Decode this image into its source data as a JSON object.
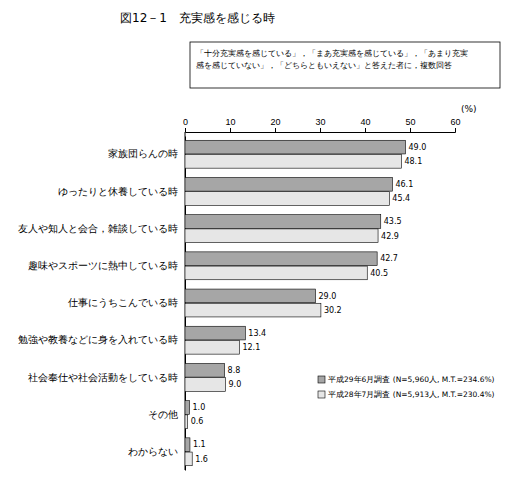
{
  "chart_data": {
    "type": "bar",
    "orientation": "horizontal",
    "title": "図12－1　充実感を感じる時",
    "subtitle": "「十分充実感を感じている」，「まあ充実感を感じている」，「あまり充実感を感じていない」，「どちらともいえない」と答えた者に，複数回答",
    "xlabel": "(%)",
    "categories": [
      "家族団らんの時",
      "ゆったりと休養している時",
      "友人や知人と会合，雑談している時",
      "趣味やスポーツに熱中している時",
      "仕事にうちこんでいる時",
      "勉強や教養などに身を入れている時",
      "社会奉仕や社会活動をしている時",
      "その他",
      "わからない"
    ],
    "series": [
      {
        "name": "平成29年6月調査 (N=5,960人, M.T.=234.6%)",
        "color": "#a6a6a6",
        "values": [
          49.0,
          46.1,
          43.5,
          42.7,
          29.0,
          13.4,
          8.8,
          1.0,
          1.1
        ],
        "value_labels": [
          "49.0",
          "46.1",
          "43.5",
          "42.7",
          "29.0",
          "13.4",
          "8.8",
          "1.0",
          "1.1"
        ]
      },
      {
        "name": "平成28年7月調査 (N=5,913人, M.T.=230.4%)",
        "color": "#e6e6e6",
        "values": [
          48.1,
          45.4,
          42.9,
          40.5,
          30.2,
          12.1,
          9.0,
          0.6,
          1.6
        ],
        "value_labels": [
          "48.1",
          "45.4",
          "42.9",
          "40.5",
          "30.2",
          "12.1",
          "9.0",
          "0.6",
          "1.6"
        ]
      }
    ],
    "xlim": [
      0,
      60
    ],
    "xticks": [
      0,
      10,
      20,
      30,
      40,
      50,
      60
    ],
    "data_labels": true,
    "legend": "lower right",
    "grid": false
  }
}
